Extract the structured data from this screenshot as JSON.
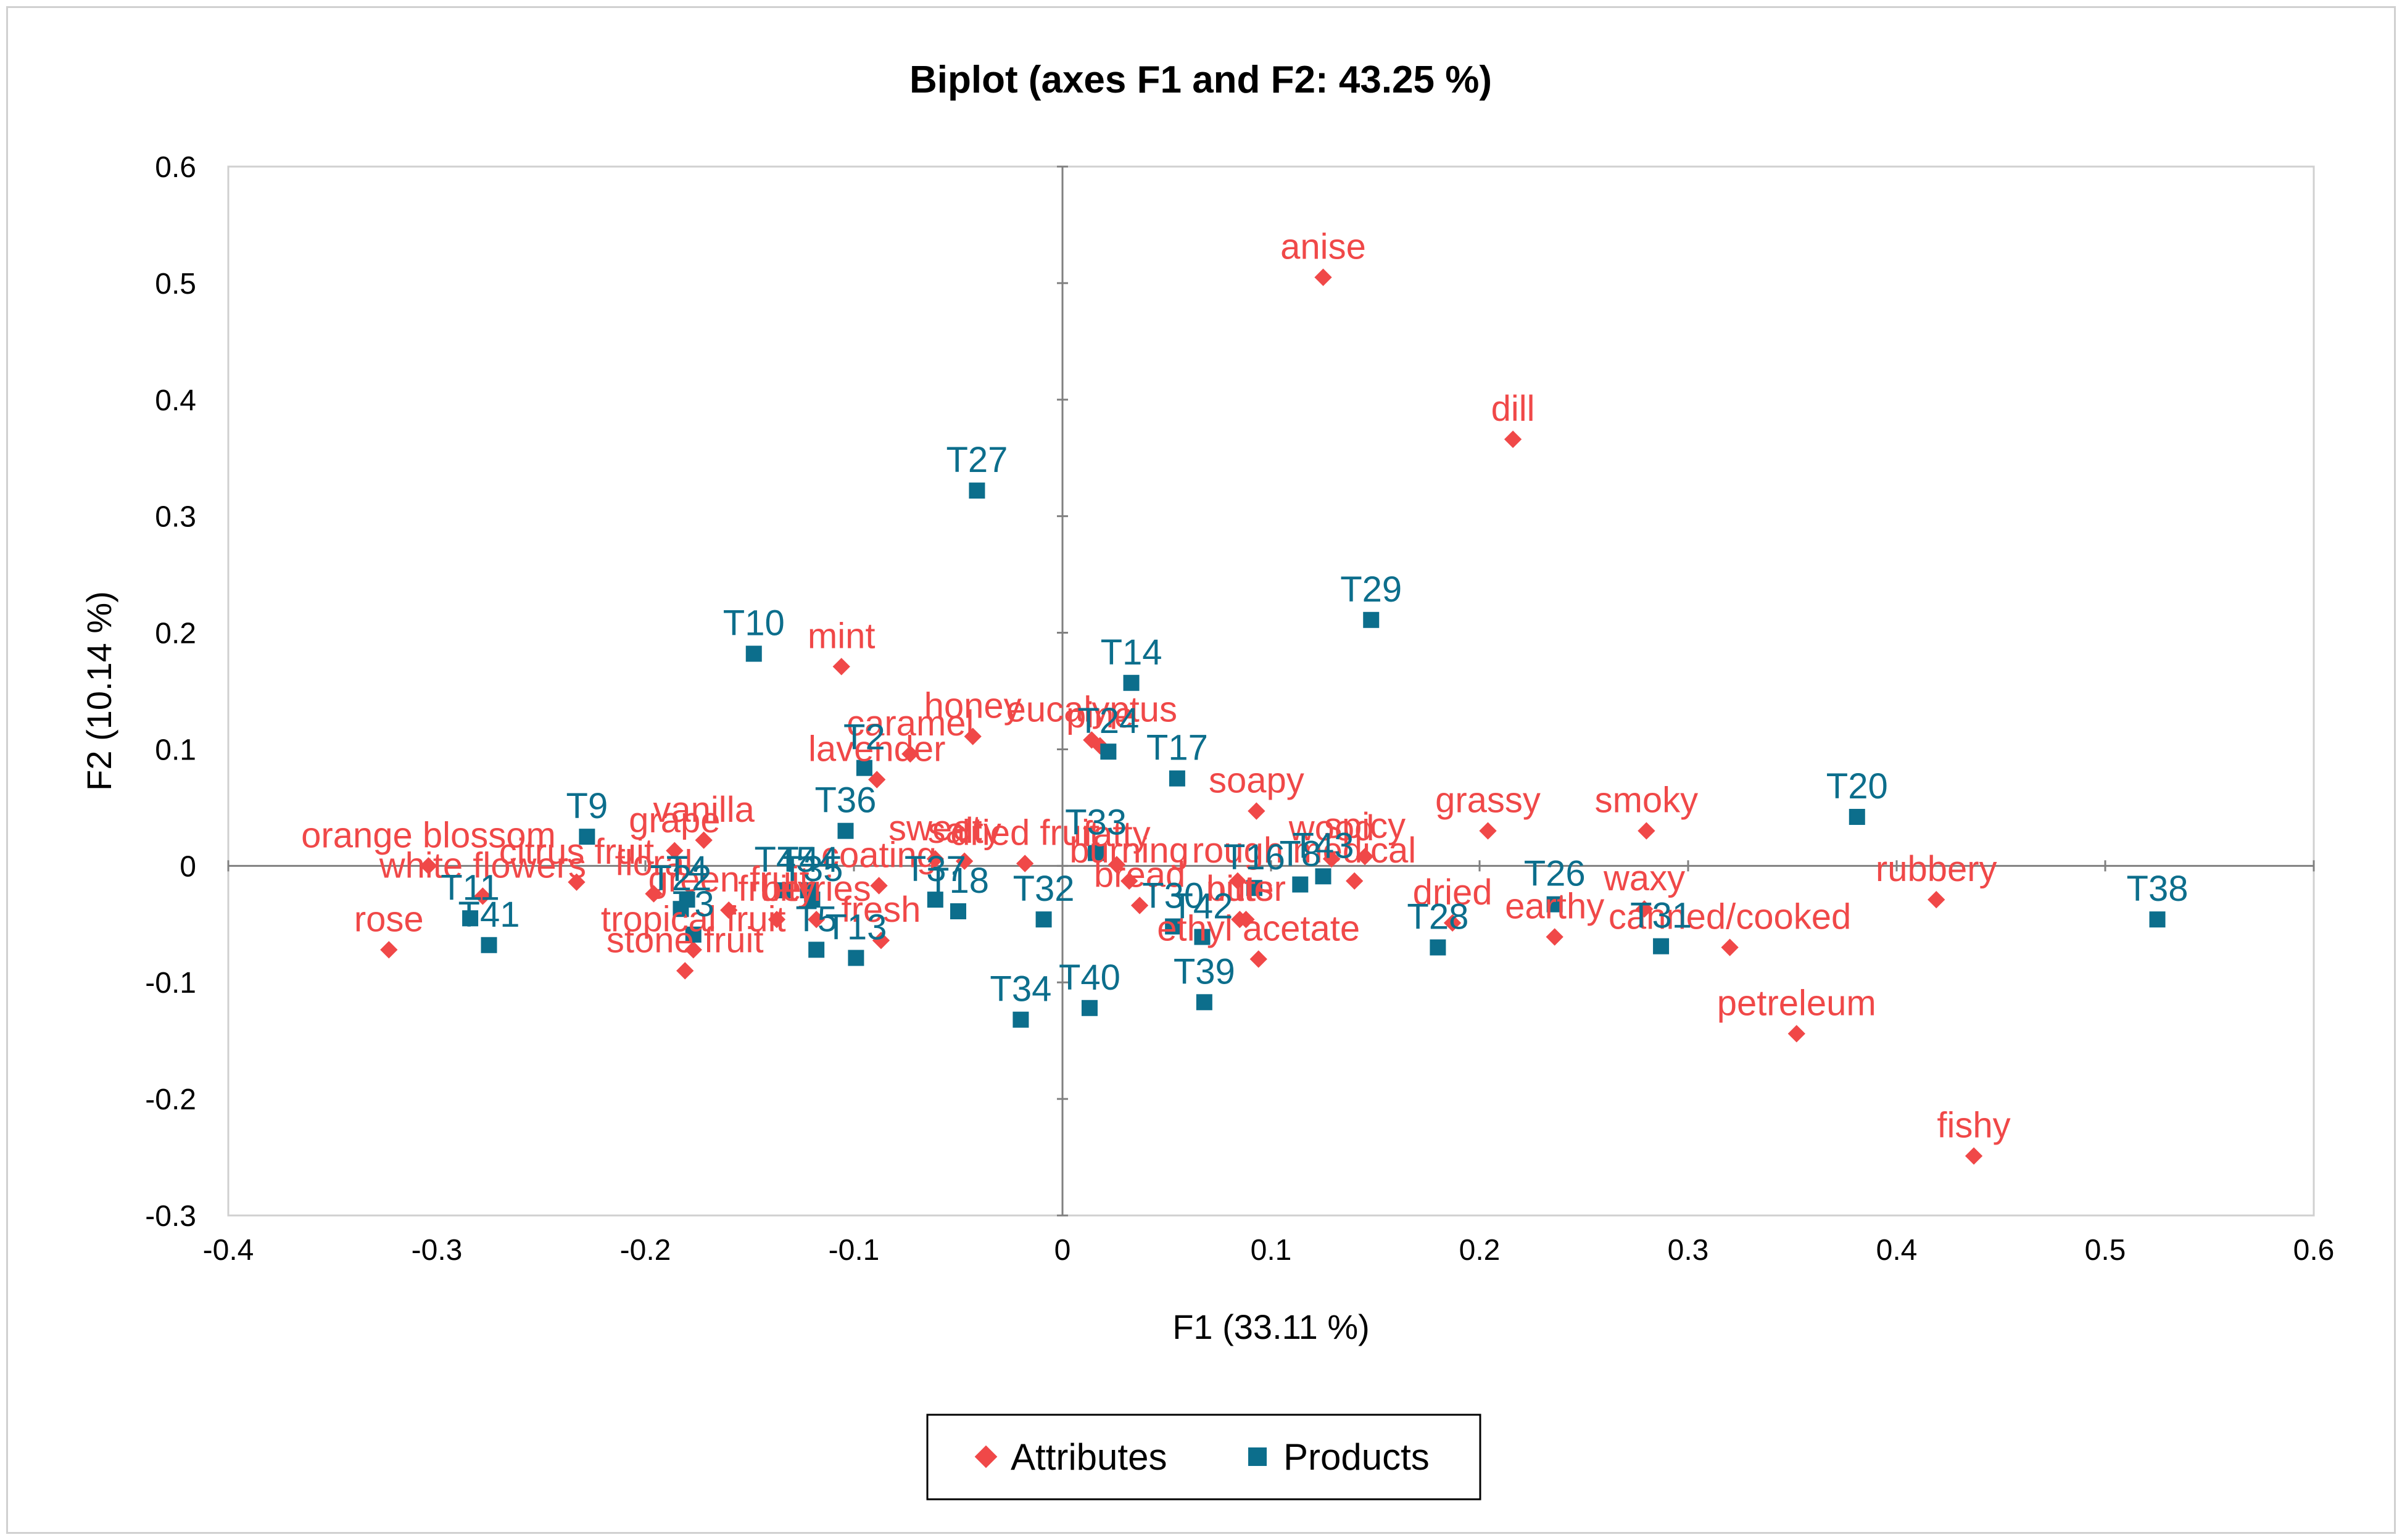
{
  "chart_data": {
    "type": "scatter",
    "title": "Biplot (axes F1 and F2: 43.25 %)",
    "xlabel": "F1 (33.11 %)",
    "ylabel": "F2 (10.14 %)",
    "xlim": [
      -0.4,
      0.6
    ],
    "ylim": [
      -0.3,
      0.6
    ],
    "x_ticks": [
      "-0.4",
      "-0.3",
      "-0.2",
      "-0.1",
      "0",
      "0.1",
      "0.2",
      "0.3",
      "0.4",
      "0.5",
      "0.6"
    ],
    "y_ticks": [
      "0.6",
      "0.5",
      "0.4",
      "0.3",
      "0.2",
      "0.1",
      "0",
      "-0.1",
      "-0.2",
      "-0.3"
    ],
    "grid": false,
    "legend_position": "bottom",
    "colors": {
      "attributes": "#f04848",
      "products": "#0c6e8c",
      "axis": "#808080"
    },
    "series": [
      {
        "name": "Attributes",
        "marker": "diamond",
        "points": [
          {
            "label": "anise",
            "x": 0.125,
            "y": 0.505
          },
          {
            "label": "dill",
            "x": 0.216,
            "y": 0.366
          },
          {
            "label": "mint",
            "x": -0.106,
            "y": 0.171
          },
          {
            "label": "honey",
            "x": -0.043,
            "y": 0.111
          },
          {
            "label": "caramel",
            "x": -0.073,
            "y": 0.096
          },
          {
            "label": "eucalyptus",
            "x": 0.014,
            "y": 0.108
          },
          {
            "label": "pine",
            "x": 0.018,
            "y": 0.103
          },
          {
            "label": "lavender",
            "x": -0.089,
            "y": 0.074
          },
          {
            "label": "soapy",
            "x": 0.093,
            "y": 0.047
          },
          {
            "label": "grassy",
            "x": 0.204,
            "y": 0.03
          },
          {
            "label": "smoky",
            "x": 0.28,
            "y": 0.03
          },
          {
            "label": "vanilla",
            "x": -0.172,
            "y": 0.022
          },
          {
            "label": "grape",
            "x": -0.186,
            "y": 0.013
          },
          {
            "label": "orange blossom",
            "x": -0.304,
            "y": 0.0
          },
          {
            "label": "sweet",
            "x": -0.061,
            "y": 0.006
          },
          {
            "label": "salty",
            "x": -0.047,
            "y": 0.004
          },
          {
            "label": "dried fruit",
            "x": -0.018,
            "y": 0.002
          },
          {
            "label": "fatty",
            "x": 0.026,
            "y": 0.001
          },
          {
            "label": "wood",
            "x": 0.129,
            "y": 0.006
          },
          {
            "label": "spicy",
            "x": 0.145,
            "y": 0.008
          },
          {
            "label": "citrus fruit",
            "x": -0.233,
            "y": -0.014
          },
          {
            "label": "white flowers",
            "x": -0.278,
            "y": -0.026
          },
          {
            "label": "floral",
            "x": -0.196,
            "y": -0.024
          },
          {
            "label": "coating",
            "x": -0.088,
            "y": -0.017
          },
          {
            "label": "burning",
            "x": 0.032,
            "y": -0.013
          },
          {
            "label": "rough",
            "x": 0.084,
            "y": -0.013
          },
          {
            "label": "medical",
            "x": 0.14,
            "y": -0.013
          },
          {
            "label": "green fruit",
            "x": -0.16,
            "y": -0.038
          },
          {
            "label": "fruity",
            "x": -0.137,
            "y": -0.046
          },
          {
            "label": "berries",
            "x": -0.118,
            "y": -0.046
          },
          {
            "label": "bread",
            "x": 0.037,
            "y": -0.034
          },
          {
            "label": "nuts",
            "x": 0.085,
            "y": -0.046
          },
          {
            "label": "ethyl acetate",
            "x": 0.094,
            "y": -0.08
          },
          {
            "label": "dried",
            "x": 0.187,
            "y": -0.049
          },
          {
            "label": "waxy",
            "x": 0.279,
            "y": -0.037
          },
          {
            "label": "earthy",
            "x": 0.236,
            "y": -0.061
          },
          {
            "label": "rubbery",
            "x": 0.419,
            "y": -0.029
          },
          {
            "label": "canned/cooked",
            "x": 0.32,
            "y": -0.07
          },
          {
            "label": "tropical fruit",
            "x": -0.177,
            "y": -0.072
          },
          {
            "label": "fresh",
            "x": -0.087,
            "y": -0.064
          },
          {
            "label": "stone fruit",
            "x": -0.181,
            "y": -0.09
          },
          {
            "label": "rose",
            "x": -0.323,
            "y": -0.072
          },
          {
            "label": "bitter",
            "x": 0.088,
            "y": -0.046
          },
          {
            "label": "petreleum",
            "x": 0.352,
            "y": -0.144
          },
          {
            "label": "fishy",
            "x": 0.437,
            "y": -0.249
          }
        ]
      },
      {
        "name": "Products",
        "marker": "square",
        "points": [
          {
            "label": "T27",
            "x": -0.041,
            "y": 0.322
          },
          {
            "label": "T29",
            "x": 0.148,
            "y": 0.211
          },
          {
            "label": "T10",
            "x": -0.148,
            "y": 0.182
          },
          {
            "label": "T14",
            "x": 0.033,
            "y": 0.157
          },
          {
            "label": "T2",
            "x": -0.095,
            "y": 0.084
          },
          {
            "label": "T24",
            "x": 0.022,
            "y": 0.098
          },
          {
            "label": "T17",
            "x": 0.055,
            "y": 0.075
          },
          {
            "label": "T33",
            "x": 0.016,
            "y": 0.011
          },
          {
            "label": "T20",
            "x": 0.381,
            "y": 0.042
          },
          {
            "label": "T9",
            "x": -0.228,
            "y": 0.025
          },
          {
            "label": "T36",
            "x": -0.104,
            "y": 0.03
          },
          {
            "label": "T43",
            "x": 0.125,
            "y": -0.009
          },
          {
            "label": "T16",
            "x": 0.092,
            "y": -0.019
          },
          {
            "label": "T8",
            "x": 0.114,
            "y": -0.016
          },
          {
            "label": "T4",
            "x": -0.18,
            "y": -0.029
          },
          {
            "label": "T3",
            "x": -0.177,
            "y": -0.059
          },
          {
            "label": "T45",
            "x": -0.133,
            "y": -0.021
          },
          {
            "label": "T44",
            "x": -0.122,
            "y": -0.021
          },
          {
            "label": "T35",
            "x": -0.12,
            "y": -0.029
          },
          {
            "label": "T37",
            "x": -0.061,
            "y": -0.029
          },
          {
            "label": "T18",
            "x": -0.05,
            "y": -0.039
          },
          {
            "label": "T32",
            "x": -0.009,
            "y": -0.046
          },
          {
            "label": "T30",
            "x": 0.053,
            "y": -0.052
          },
          {
            "label": "T42",
            "x": 0.067,
            "y": -0.061
          },
          {
            "label": "T26",
            "x": 0.236,
            "y": -0.033
          },
          {
            "label": "T28",
            "x": 0.18,
            "y": -0.07
          },
          {
            "label": "T31",
            "x": 0.287,
            "y": -0.069
          },
          {
            "label": "T38",
            "x": 0.525,
            "y": -0.046
          },
          {
            "label": "T11",
            "x": -0.284,
            "y": -0.045
          },
          {
            "label": "T41",
            "x": -0.275,
            "y": -0.068
          },
          {
            "label": "T22",
            "x": -0.183,
            "y": -0.037
          },
          {
            "label": "T5",
            "x": -0.118,
            "y": -0.072
          },
          {
            "label": "T13",
            "x": -0.099,
            "y": -0.079
          },
          {
            "label": "T34",
            "x": -0.02,
            "y": -0.132
          },
          {
            "label": "T40",
            "x": 0.013,
            "y": -0.122
          },
          {
            "label": "T39",
            "x": 0.068,
            "y": -0.117
          }
        ]
      }
    ]
  }
}
